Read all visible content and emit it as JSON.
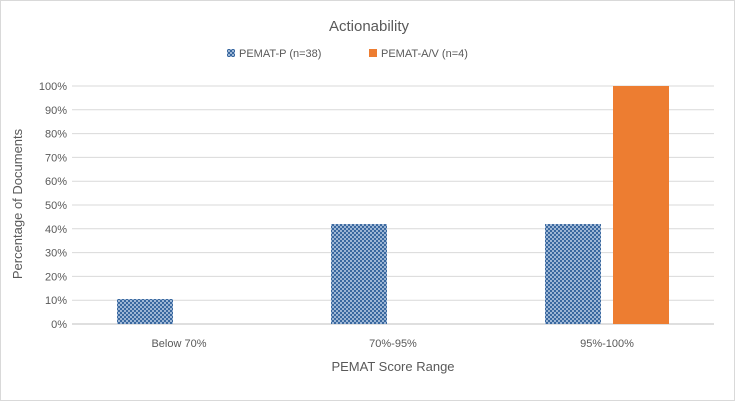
{
  "chart_data": {
    "type": "bar",
    "title": "Actionability",
    "xlabel": "PEMAT Score Range",
    "ylabel": "Percentage of Documents",
    "categories": [
      "Below 70%",
      "70%-95%",
      "95%-100%"
    ],
    "ylim": [
      0,
      100
    ],
    "yticks": [
      "0%",
      "10%",
      "20%",
      "30%",
      "40%",
      "50%",
      "60%",
      "70%",
      "80%",
      "90%",
      "100%"
    ],
    "grid": true,
    "legend_position": "top",
    "series": [
      {
        "name": "PEMAT-P (n=38)",
        "values": [
          10.5,
          42,
          42
        ],
        "color": "#4f81bd",
        "fill": "crosshatch"
      },
      {
        "name": "PEMAT-A/V (n=4)",
        "values": [
          0,
          0,
          100
        ],
        "color": "#ed7d31",
        "fill": "solid"
      }
    ]
  }
}
